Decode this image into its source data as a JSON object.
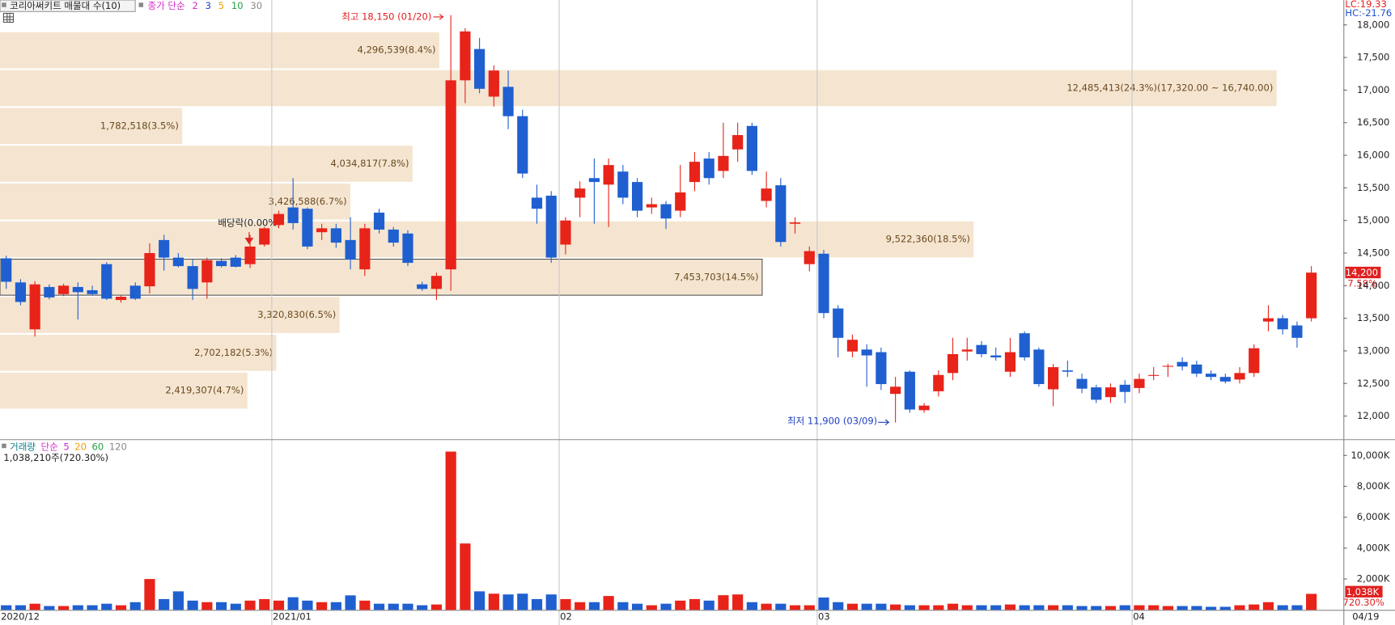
{
  "chart_data": [
    {
      "type": "candlestick",
      "title": "코리아써키트 매물대 수(10)",
      "ma_legend": {
        "label": "종가 단순",
        "periods": [
          {
            "label": "2",
            "color": "#d42bc8"
          },
          {
            "label": "3",
            "color": "#2040d0"
          },
          {
            "label": "5",
            "color": "#f0a000"
          },
          {
            "label": "10",
            "color": "#22a040"
          },
          {
            "label": "30",
            "color": "#888888"
          }
        ]
      },
      "stats": [
        {
          "text": "LC:19.33",
          "color": "#e02020"
        },
        {
          "text": "HC:-21.76",
          "color": "#2050d0"
        }
      ],
      "annotations": {
        "high": "최고 18,150 (01/20)",
        "low": "최저 11,900 (03/09)",
        "dividend": "배당락(0.00%)"
      },
      "price_tag": "14,200",
      "price_change": "7.58%",
      "up_color": "#e8231a",
      "down_color": "#1f5fd0",
      "ylim": [
        11645,
        18382
      ],
      "yticks": [
        {
          "value": 12000,
          "label": "12,000"
        },
        {
          "value": 12500,
          "label": "12,500"
        },
        {
          "value": 13000,
          "label": "13,000"
        },
        {
          "value": 13500,
          "label": "13,500"
        },
        {
          "value": 14000,
          "label": "14,000"
        },
        {
          "value": 14500,
          "label": "14,500"
        },
        {
          "value": 15000,
          "label": "15,000"
        },
        {
          "value": 15500,
          "label": "15,500"
        },
        {
          "value": 16000,
          "label": "16,000"
        },
        {
          "value": 16500,
          "label": "16,500"
        },
        {
          "value": 17000,
          "label": "17,000"
        },
        {
          "value": 17500,
          "label": "17,500"
        },
        {
          "value": 18000,
          "label": "18,000"
        }
      ],
      "ohlc": [
        [
          14420,
          14460,
          13950,
          14060
        ],
        [
          14050,
          14100,
          13700,
          13750
        ],
        [
          13330,
          14070,
          13220,
          14020
        ],
        [
          13980,
          14020,
          13790,
          13820
        ],
        [
          13870,
          14030,
          13840,
          14000
        ],
        [
          13980,
          14050,
          13480,
          13900
        ],
        [
          13930,
          14000,
          13850,
          13870
        ],
        [
          14330,
          14360,
          13780,
          13800
        ],
        [
          13780,
          13850,
          13740,
          13830
        ],
        [
          14000,
          14050,
          13780,
          13800
        ],
        [
          13990,
          14650,
          13880,
          14500
        ],
        [
          14700,
          14780,
          14230,
          14430
        ],
        [
          14430,
          14500,
          14280,
          14300
        ],
        [
          14300,
          14400,
          13780,
          13950
        ],
        [
          14050,
          14430,
          13800,
          14390
        ],
        [
          14380,
          14420,
          14280,
          14300
        ],
        [
          14430,
          14470,
          14280,
          14290
        ],
        [
          14330,
          14780,
          14270,
          14600
        ],
        [
          14630,
          14900,
          14600,
          14880
        ],
        [
          14930,
          15150,
          14880,
          15100
        ],
        [
          15200,
          15650,
          14860,
          14960
        ],
        [
          15180,
          15200,
          14560,
          14600
        ],
        [
          14820,
          14950,
          14700,
          14880
        ],
        [
          14880,
          14950,
          14580,
          14660
        ],
        [
          14700,
          15050,
          14250,
          14400
        ],
        [
          14250,
          14950,
          14150,
          14880
        ],
        [
          15120,
          15180,
          14800,
          14860
        ],
        [
          14860,
          14900,
          14600,
          14660
        ],
        [
          14800,
          14850,
          14300,
          14350
        ],
        [
          14020,
          14060,
          13920,
          13950
        ],
        [
          13950,
          14200,
          13780,
          14150
        ],
        [
          14250,
          18150,
          13920,
          17150
        ],
        [
          17150,
          17950,
          16800,
          17900
        ],
        [
          17630,
          17800,
          16950,
          17020
        ],
        [
          16900,
          17380,
          16750,
          17300
        ],
        [
          17050,
          17300,
          16400,
          16600
        ],
        [
          16600,
          16700,
          15650,
          15720
        ],
        [
          15350,
          15550,
          14950,
          15180
        ],
        [
          15380,
          15450,
          14350,
          14430
        ],
        [
          14630,
          15050,
          14480,
          15000
        ],
        [
          15350,
          15600,
          15050,
          15490
        ],
        [
          15650,
          15950,
          14950,
          15590
        ],
        [
          15550,
          15950,
          14900,
          15850
        ],
        [
          15750,
          15850,
          15250,
          15350
        ],
        [
          15590,
          15650,
          15050,
          15150
        ],
        [
          15200,
          15350,
          15100,
          15250
        ],
        [
          15250,
          15300,
          14870,
          15030
        ],
        [
          15150,
          15850,
          15050,
          15430
        ],
        [
          15590,
          16050,
          15450,
          15900
        ],
        [
          15950,
          16050,
          15550,
          15650
        ],
        [
          15760,
          16500,
          15650,
          15990
        ],
        [
          16090,
          16500,
          15900,
          16310
        ],
        [
          16450,
          16500,
          15700,
          15760
        ],
        [
          15300,
          15750,
          15200,
          15490
        ],
        [
          15540,
          15650,
          14600,
          14670
        ],
        [
          14950,
          15050,
          14800,
          14970
        ],
        [
          14330,
          14600,
          14220,
          14530
        ],
        [
          14490,
          14550,
          13500,
          13580
        ],
        [
          13650,
          13700,
          12900,
          13200
        ],
        [
          12990,
          13250,
          12900,
          13170
        ],
        [
          13020,
          13100,
          12450,
          12930
        ],
        [
          12980,
          13050,
          12400,
          12490
        ],
        [
          12340,
          12600,
          11900,
          12450
        ],
        [
          12680,
          12700,
          12050,
          12100
        ],
        [
          12090,
          12200,
          12050,
          12160
        ],
        [
          12380,
          12700,
          12300,
          12630
        ],
        [
          12660,
          13200,
          12550,
          12950
        ],
        [
          12990,
          13200,
          12850,
          13020
        ],
        [
          13090,
          13150,
          12900,
          12950
        ],
        [
          12930,
          13050,
          12850,
          12900
        ],
        [
          12680,
          13200,
          12600,
          12980
        ],
        [
          13270,
          13300,
          12850,
          12900
        ],
        [
          13020,
          13050,
          12450,
          12490
        ],
        [
          12410,
          12800,
          12150,
          12750
        ],
        [
          12700,
          12850,
          12600,
          12680
        ],
        [
          12570,
          12650,
          12350,
          12420
        ],
        [
          12440,
          12480,
          12200,
          12250
        ],
        [
          12290,
          12500,
          12200,
          12440
        ],
        [
          12480,
          12550,
          12200,
          12370
        ],
        [
          12430,
          12650,
          12350,
          12570
        ],
        [
          12620,
          12750,
          12550,
          12630
        ],
        [
          12760,
          12800,
          12600,
          12770
        ],
        [
          12830,
          12900,
          12700,
          12760
        ],
        [
          12790,
          12850,
          12600,
          12650
        ],
        [
          12650,
          12700,
          12550,
          12600
        ],
        [
          12600,
          12650,
          12500,
          12530
        ],
        [
          12560,
          12750,
          12500,
          12660
        ],
        [
          12660,
          13100,
          12600,
          13040
        ],
        [
          13450,
          13700,
          13300,
          13500
        ],
        [
          13500,
          13550,
          13250,
          13330
        ],
        [
          13390,
          13450,
          13050,
          13200
        ],
        [
          13500,
          14300,
          13450,
          14200
        ]
      ],
      "profile_color": "#f5e5d0",
      "current_band_index": 6,
      "profile": [
        {
          "label": "4,296,539(8.4%)",
          "volume": 4296539,
          "from": 17900,
          "to": 17320
        },
        {
          "label": "12,485,413(24.3%)(17,320.00 ~ 16,740.00)",
          "volume": 12485413,
          "from": 17320,
          "to": 16740
        },
        {
          "label": "1,782,518(3.5%)",
          "volume": 1782518,
          "from": 16740,
          "to": 16160
        },
        {
          "label": "4,034,817(7.8%)",
          "volume": 4034817,
          "from": 16160,
          "to": 15580
        },
        {
          "label": "3,426,588(6.7%)",
          "volume": 3426588,
          "from": 15580,
          "to": 15000
        },
        {
          "label": "9,522,360(18.5%)",
          "volume": 9522360,
          "from": 15000,
          "to": 14420
        },
        {
          "label": "7,453,703(14.5%)",
          "volume": 7453703,
          "from": 14420,
          "to": 13840
        },
        {
          "label": "3,320,830(6.5%)",
          "volume": 3320830,
          "from": 13840,
          "to": 13260
        },
        {
          "label": "2,702,182(5.3%)",
          "volume": 2702182,
          "from": 13260,
          "to": 12680
        },
        {
          "label": "2,419,307(4.7%)",
          "volume": 2419307,
          "from": 12680,
          "to": 12100
        }
      ]
    },
    {
      "type": "bar",
      "legend": [
        {
          "label": "거래량",
          "color": "#108090"
        },
        {
          "label": "단순",
          "color": "#d42bc8"
        },
        {
          "label": "5",
          "color": "#d42bc8"
        },
        {
          "label": "20",
          "color": "#f0a000"
        },
        {
          "label": "60",
          "color": "#22a040"
        },
        {
          "label": "120",
          "color": "#888888"
        }
      ],
      "info": "1,038,210주(720.30%)",
      "volume_tag": "1,038K",
      "volume_change": "720.30%",
      "last_date": "04/19",
      "ylim": [
        0,
        10880
      ],
      "yticks": [
        {
          "value": 2000,
          "label": "2,000K"
        },
        {
          "value": 4000,
          "label": "4,000K"
        },
        {
          "value": 6000,
          "label": "6,000K"
        },
        {
          "value": 8000,
          "label": "8,000K"
        },
        {
          "value": 10000,
          "label": "10,000K"
        }
      ],
      "categories": [
        "2020/12",
        null,
        null,
        null,
        null,
        null,
        null,
        null,
        null,
        null,
        null,
        null,
        null,
        null,
        null,
        null,
        null,
        null,
        null,
        "2021/01",
        null,
        null,
        null,
        null,
        null,
        null,
        null,
        null,
        null,
        null,
        null,
        null,
        null,
        null,
        null,
        null,
        null,
        null,
        null,
        "02",
        null,
        null,
        null,
        null,
        null,
        null,
        null,
        null,
        null,
        null,
        null,
        null,
        null,
        null,
        null,
        null,
        null,
        "03",
        null,
        null,
        null,
        null,
        null,
        null,
        null,
        null,
        null,
        null,
        null,
        null,
        null,
        null,
        null,
        null,
        null,
        null,
        null,
        null,
        null,
        "04",
        null,
        null,
        null,
        null,
        null,
        null,
        null,
        null,
        null,
        null,
        null,
        null
      ],
      "values": [
        300,
        300,
        400,
        250,
        250,
        300,
        300,
        400,
        300,
        500,
        2000,
        700,
        1200,
        600,
        500,
        500,
        400,
        600,
        700,
        600,
        820,
        600,
        500,
        500,
        940,
        600,
        400,
        400,
        400,
        300,
        350,
        10250,
        4300,
        1200,
        1050,
        1000,
        1050,
        700,
        1000,
        700,
        500,
        500,
        900,
        500,
        400,
        300,
        400,
        600,
        700,
        600,
        950,
        1000,
        500,
        400,
        400,
        300,
        300,
        800,
        500,
        400,
        400,
        400,
        350,
        300,
        300,
        300,
        400,
        300,
        300,
        300,
        350,
        300,
        300,
        300,
        300,
        250,
        250,
        250,
        300,
        300,
        300,
        250,
        250,
        250,
        200,
        200,
        300,
        350,
        500,
        300,
        300,
        1038
      ]
    }
  ]
}
